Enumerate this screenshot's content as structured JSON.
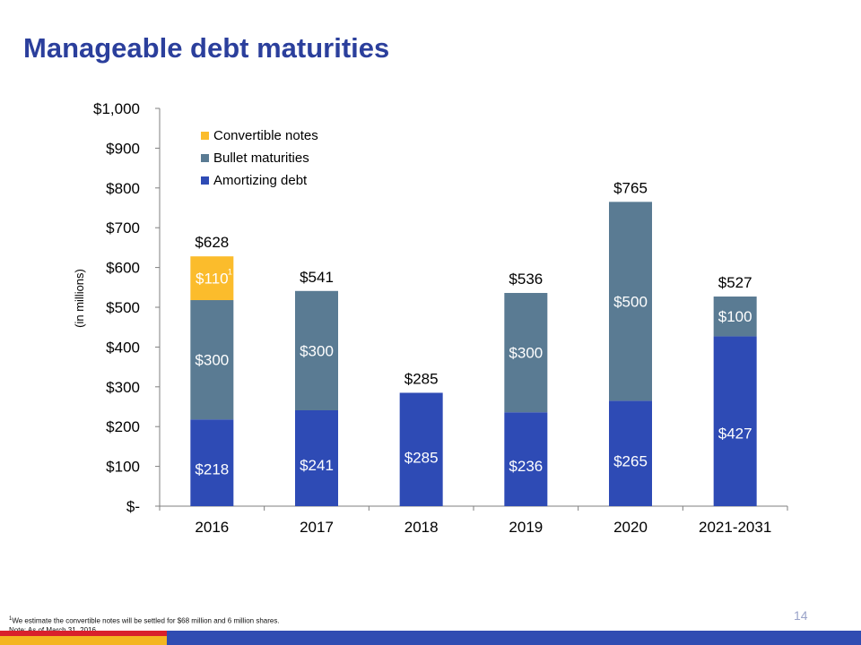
{
  "title": "Manageable debt maturities",
  "chart_data": {
    "type": "bar",
    "stacked": true,
    "categories": [
      "2016",
      "2017",
      "2018",
      "2019",
      "2020",
      "2021-2031"
    ],
    "series": [
      {
        "name": "Amortizing debt",
        "color": "#2e4bb5",
        "values": [
          218,
          241,
          285,
          236,
          265,
          427
        ]
      },
      {
        "name": "Bullet maturities",
        "color": "#5a7b93",
        "values": [
          300,
          300,
          0,
          300,
          500,
          100
        ]
      },
      {
        "name": "Convertible notes",
        "color": "#fbbc2c",
        "values": [
          110,
          0,
          0,
          0,
          0,
          0
        ]
      }
    ],
    "segment_labels": [
      [
        "$218",
        "$241",
        "$285",
        "$236",
        "$265",
        "$427"
      ],
      [
        "$300",
        "$300",
        "",
        "$300",
        "$500",
        "$100"
      ],
      [
        "$110",
        "",
        "",
        "",
        "",
        ""
      ]
    ],
    "totals": [
      628,
      541,
      285,
      536,
      765,
      527
    ],
    "total_labels": [
      "$628",
      "$541",
      "$285",
      "$536",
      "$765",
      "$527"
    ],
    "convertible_superscript": "1",
    "ylabel": "(in millions)",
    "ylim": [
      0,
      1000
    ],
    "yticks": [
      0,
      100,
      200,
      300,
      400,
      500,
      600,
      700,
      800,
      900,
      1000
    ],
    "ytick_labels": [
      "$-",
      "$100",
      "$200",
      "$300",
      "$400",
      "$500",
      "$600",
      "$700",
      "$800",
      "$900",
      "$1,000"
    ],
    "legend_order": [
      "Convertible notes",
      "Bullet maturities",
      "Amortizing debt"
    ],
    "legend_position": "top-left",
    "grid": false
  },
  "footnotes": {
    "line1_superscript": "1",
    "line1_text": "We estimate the convertible notes will be settled for $68 million and 6 million shares.",
    "line2": "Note: As of March 31, 2016."
  },
  "page_number": "14",
  "brand_colors": {
    "blue": "#304cb2",
    "red": "#d9202c",
    "yellow": "#f4b520"
  }
}
